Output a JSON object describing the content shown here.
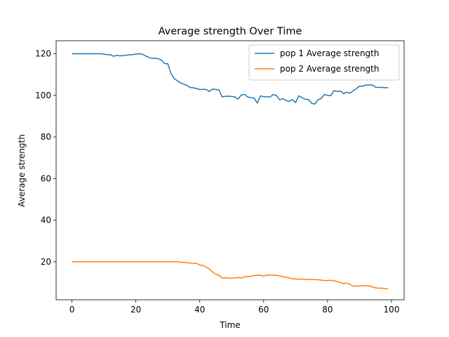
{
  "chart_data": {
    "type": "line",
    "title": "Average strength Over Time",
    "xlabel": "Time",
    "ylabel": "Average strength",
    "xlim": [
      -4.95,
      103.95
    ],
    "ylim": [
      1.75,
      126.25
    ],
    "xticks": [
      0,
      20,
      40,
      60,
      80,
      100
    ],
    "yticks": [
      20,
      40,
      60,
      80,
      100,
      120
    ],
    "grid": false,
    "legend": "top-right",
    "series": [
      {
        "name": "pop 1 Average strength",
        "color": "#1f77b4",
        "x": [
          0,
          1,
          2,
          3,
          4,
          5,
          6,
          7,
          8,
          9,
          10,
          11,
          12,
          13,
          14,
          15,
          16,
          17,
          18,
          19,
          20,
          21,
          22,
          23,
          24,
          25,
          26,
          27,
          28,
          29,
          30,
          31,
          32,
          33,
          34,
          35,
          36,
          37,
          38,
          39,
          40,
          41,
          42,
          43,
          44,
          45,
          46,
          47,
          48,
          49,
          50,
          51,
          52,
          53,
          54,
          55,
          56,
          57,
          58,
          59,
          60,
          61,
          62,
          63,
          64,
          65,
          66,
          67,
          68,
          69,
          70,
          71,
          72,
          73,
          74,
          75,
          76,
          77,
          78,
          79,
          80,
          81,
          82,
          83,
          84,
          85,
          86,
          87,
          88,
          89,
          90,
          91,
          92,
          93,
          94,
          95,
          96,
          97,
          98,
          99
        ],
        "y": [
          120,
          120,
          120,
          120,
          120,
          120,
          120,
          120,
          120,
          120,
          119.8,
          119.6,
          119.5,
          118.8,
          119.2,
          119.0,
          119.1,
          119.3,
          119.5,
          119.6,
          119.8,
          120,
          119.8,
          119.0,
          118.3,
          117.8,
          117.8,
          117.6,
          117.0,
          115.3,
          115.2,
          110.5,
          108.0,
          107.0,
          106.0,
          105.3,
          104.8,
          103.8,
          103.6,
          103.3,
          102.8,
          102.9,
          102.8,
          101.9,
          103.0,
          102.8,
          102.6,
          99.3,
          99.5,
          99.6,
          99.5,
          99.2,
          98.2,
          100.2,
          100.5,
          99.2,
          98.9,
          98.7,
          96.3,
          99.7,
          99.4,
          99.3,
          99.2,
          100.4,
          99.9,
          97.9,
          98.4,
          97.5,
          97.1,
          98.0,
          96.5,
          99.8,
          98.9,
          98.1,
          98.0,
          96.2,
          95.8,
          97.9,
          98.5,
          100.4,
          100.0,
          99.8,
          102.3,
          101.8,
          102.1,
          100.8,
          101.5,
          101.0,
          102.2,
          103.2,
          104.4,
          104.4,
          105.0,
          105.0,
          105.0,
          103.9,
          103.8,
          103.8,
          103.7,
          103.7
        ]
      },
      {
        "name": "pop 2 Average strength",
        "color": "#ff7f0e",
        "x": [
          0,
          1,
          2,
          3,
          4,
          5,
          6,
          7,
          8,
          9,
          10,
          11,
          12,
          13,
          14,
          15,
          16,
          17,
          18,
          19,
          20,
          21,
          22,
          23,
          24,
          25,
          26,
          27,
          28,
          29,
          30,
          31,
          32,
          33,
          34,
          35,
          36,
          37,
          38,
          39,
          40,
          41,
          42,
          43,
          44,
          45,
          46,
          47,
          48,
          49,
          50,
          51,
          52,
          53,
          54,
          55,
          56,
          57,
          58,
          59,
          60,
          61,
          62,
          63,
          64,
          65,
          66,
          67,
          68,
          69,
          70,
          71,
          72,
          73,
          74,
          75,
          76,
          77,
          78,
          79,
          80,
          81,
          82,
          83,
          84,
          85,
          86,
          87,
          88,
          89,
          90,
          91,
          92,
          93,
          94,
          95,
          96,
          97,
          98,
          99
        ],
        "y": [
          20,
          20,
          20,
          20,
          20,
          20,
          20,
          20,
          20,
          20,
          20,
          20,
          20,
          20,
          20,
          20,
          20,
          20,
          20,
          20,
          20,
          20,
          20,
          20,
          20,
          20,
          20,
          20,
          20,
          20,
          20,
          20,
          20,
          20,
          19.8,
          19.7,
          19.6,
          19.4,
          19.2,
          19.3,
          18.5,
          18.2,
          17.5,
          16.5,
          15.2,
          14.0,
          13.6,
          12.2,
          12.3,
          12.2,
          12.1,
          12.3,
          12.4,
          12.2,
          12.8,
          12.9,
          13.0,
          13.4,
          13.5,
          13.6,
          13.1,
          13.6,
          13.7,
          13.6,
          13.5,
          13.2,
          12.8,
          12.6,
          12.3,
          11.8,
          11.8,
          11.6,
          11.7,
          11.5,
          11.5,
          11.6,
          11.4,
          11.4,
          11.2,
          11.0,
          11.0,
          11.1,
          10.9,
          10.5,
          10.0,
          9.5,
          9.8,
          9.2,
          8.2,
          8.5,
          8.3,
          8.6,
          8.5,
          8.4,
          8.0,
          7.5,
          7.3,
          7.4,
          7.0,
          7.2
        ]
      }
    ]
  }
}
